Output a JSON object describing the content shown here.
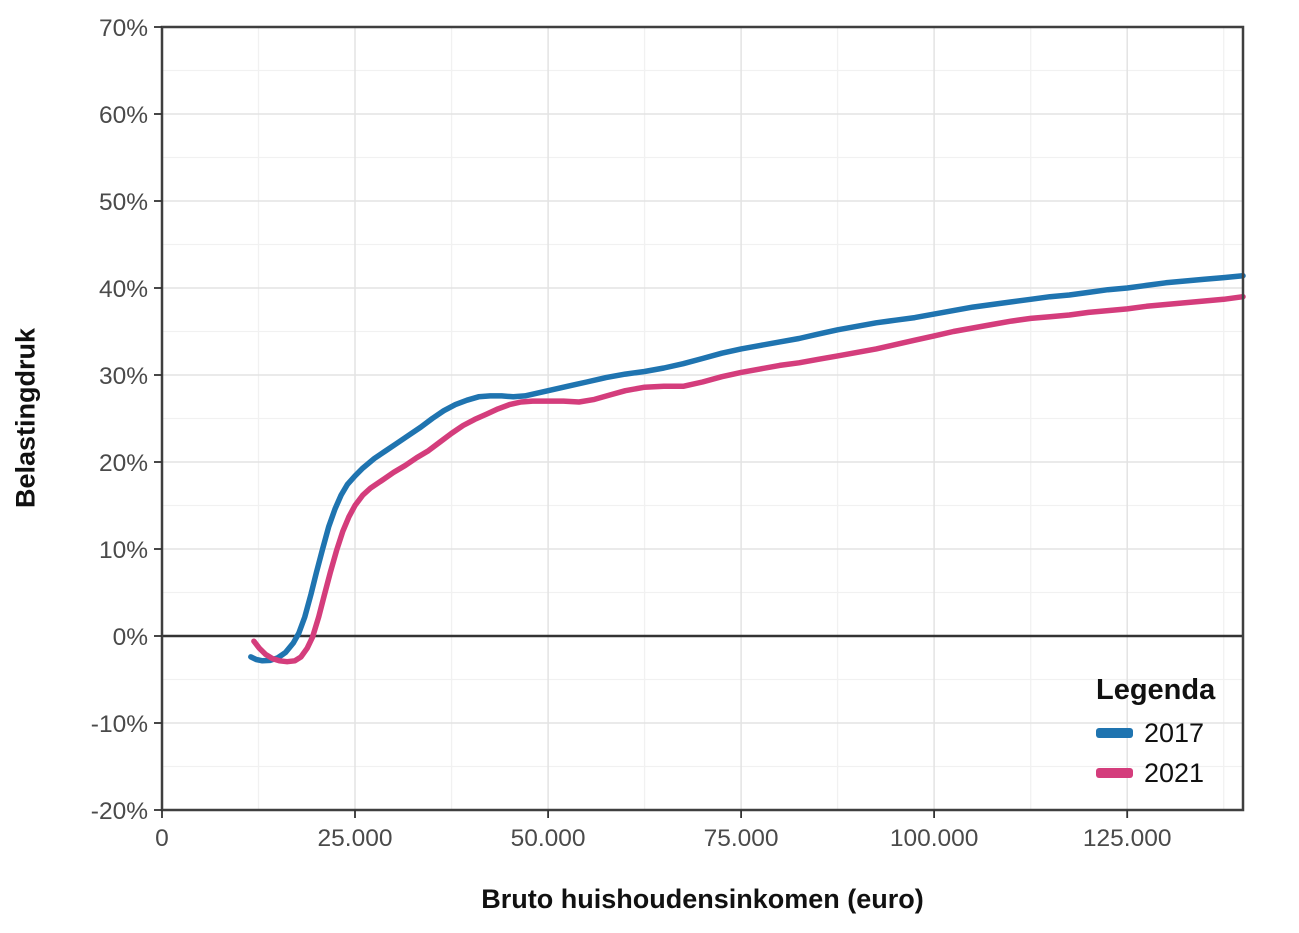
{
  "chart_data": {
    "type": "line",
    "title": "",
    "xlabel": "Bruto huishoudensinkomen (euro)",
    "ylabel": "Belastingdruk",
    "xlim": [
      0,
      140000
    ],
    "ylim": [
      -20,
      70
    ],
    "grid": "on",
    "zero_line": true,
    "x_ticks": [
      {
        "value": 0,
        "label": "0"
      },
      {
        "value": 25000,
        "label": "25.000"
      },
      {
        "value": 50000,
        "label": "50.000"
      },
      {
        "value": 75000,
        "label": "75.000"
      },
      {
        "value": 100000,
        "label": "100.000"
      },
      {
        "value": 125000,
        "label": "125.000"
      }
    ],
    "y_ticks": [
      {
        "value": 70,
        "label": "70%"
      },
      {
        "value": 60,
        "label": "60%"
      },
      {
        "value": 50,
        "label": "50%"
      },
      {
        "value": 40,
        "label": "40%"
      },
      {
        "value": 30,
        "label": "30%"
      },
      {
        "value": 20,
        "label": "20%"
      },
      {
        "value": 10,
        "label": "10%"
      },
      {
        "value": 0,
        "label": "0%"
      },
      {
        "value": -10,
        "label": "-10%"
      },
      {
        "value": -20,
        "label": "-20%"
      }
    ],
    "x_minor": [
      12500,
      37500,
      62500,
      87500,
      112500,
      137500
    ],
    "y_minor": [
      -15,
      -5,
      5,
      15,
      25,
      35,
      45,
      55,
      65
    ],
    "legend": {
      "title": "Legenda",
      "position": "bottom-right-inside"
    },
    "style": {
      "grid_major": "#e3e3e3",
      "grid_minor": "#f1f1f1",
      "panel_border": "#3f3f3f",
      "zero_line_color": "#333333",
      "tick_color": "#333333",
      "tick_label_color": "#4a4a4a"
    },
    "series": [
      {
        "name": "2017",
        "color": "#1f74b0",
        "points": [
          [
            11500,
            -2.4
          ],
          [
            12200,
            -2.7
          ],
          [
            13000,
            -2.85
          ],
          [
            14000,
            -2.8
          ],
          [
            15000,
            -2.5
          ],
          [
            16000,
            -1.9
          ],
          [
            17000,
            -0.8
          ],
          [
            17700,
            0.3
          ],
          [
            18500,
            2.2
          ],
          [
            19300,
            4.8
          ],
          [
            20000,
            7.3
          ],
          [
            20800,
            10.0
          ],
          [
            21600,
            12.6
          ],
          [
            22400,
            14.6
          ],
          [
            23200,
            16.2
          ],
          [
            24000,
            17.4
          ],
          [
            25000,
            18.4
          ],
          [
            26000,
            19.3
          ],
          [
            27500,
            20.4
          ],
          [
            29000,
            21.3
          ],
          [
            30500,
            22.2
          ],
          [
            32000,
            23.1
          ],
          [
            33500,
            24.0
          ],
          [
            35000,
            25.0
          ],
          [
            36500,
            25.9
          ],
          [
            38000,
            26.6
          ],
          [
            39500,
            27.1
          ],
          [
            41000,
            27.5
          ],
          [
            42500,
            27.6
          ],
          [
            44000,
            27.6
          ],
          [
            45500,
            27.5
          ],
          [
            47000,
            27.6
          ],
          [
            48500,
            27.9
          ],
          [
            50000,
            28.2
          ],
          [
            52500,
            28.7
          ],
          [
            55000,
            29.2
          ],
          [
            57500,
            29.7
          ],
          [
            60000,
            30.1
          ],
          [
            62500,
            30.4
          ],
          [
            65000,
            30.8
          ],
          [
            67500,
            31.3
          ],
          [
            70000,
            31.9
          ],
          [
            72500,
            32.5
          ],
          [
            75000,
            33.0
          ],
          [
            77500,
            33.4
          ],
          [
            80000,
            33.8
          ],
          [
            82500,
            34.2
          ],
          [
            85000,
            34.7
          ],
          [
            87500,
            35.2
          ],
          [
            90000,
            35.6
          ],
          [
            92500,
            36.0
          ],
          [
            95000,
            36.3
          ],
          [
            97500,
            36.6
          ],
          [
            100000,
            37.0
          ],
          [
            102500,
            37.4
          ],
          [
            105000,
            37.8
          ],
          [
            107500,
            38.1
          ],
          [
            110000,
            38.4
          ],
          [
            112500,
            38.7
          ],
          [
            115000,
            39.0
          ],
          [
            117500,
            39.2
          ],
          [
            120000,
            39.5
          ],
          [
            122500,
            39.8
          ],
          [
            125000,
            40.0
          ],
          [
            127500,
            40.3
          ],
          [
            130000,
            40.6
          ],
          [
            132500,
            40.8
          ],
          [
            135000,
            41.0
          ],
          [
            137500,
            41.2
          ],
          [
            140000,
            41.4
          ]
        ]
      },
      {
        "name": "2021",
        "color": "#d43d7c",
        "points": [
          [
            11900,
            -0.6
          ],
          [
            12600,
            -1.4
          ],
          [
            13400,
            -2.1
          ],
          [
            14300,
            -2.6
          ],
          [
            15200,
            -2.85
          ],
          [
            16200,
            -2.95
          ],
          [
            17200,
            -2.85
          ],
          [
            18000,
            -2.4
          ],
          [
            18800,
            -1.4
          ],
          [
            19500,
            -0.1
          ],
          [
            20300,
            2.2
          ],
          [
            21000,
            4.6
          ],
          [
            21800,
            7.3
          ],
          [
            22600,
            9.8
          ],
          [
            23400,
            12.0
          ],
          [
            24200,
            13.7
          ],
          [
            25000,
            15.0
          ],
          [
            26000,
            16.2
          ],
          [
            27000,
            17.0
          ],
          [
            28500,
            17.9
          ],
          [
            30000,
            18.8
          ],
          [
            31500,
            19.6
          ],
          [
            33000,
            20.5
          ],
          [
            34500,
            21.3
          ],
          [
            36000,
            22.3
          ],
          [
            37500,
            23.3
          ],
          [
            39000,
            24.2
          ],
          [
            40500,
            24.9
          ],
          [
            42000,
            25.5
          ],
          [
            43500,
            26.1
          ],
          [
            45000,
            26.6
          ],
          [
            46500,
            26.9
          ],
          [
            48000,
            27.0
          ],
          [
            50000,
            27.0
          ],
          [
            52000,
            27.0
          ],
          [
            54000,
            26.9
          ],
          [
            56000,
            27.2
          ],
          [
            58000,
            27.7
          ],
          [
            60000,
            28.2
          ],
          [
            62500,
            28.6
          ],
          [
            65000,
            28.7
          ],
          [
            67500,
            28.7
          ],
          [
            70000,
            29.2
          ],
          [
            72500,
            29.8
          ],
          [
            75000,
            30.3
          ],
          [
            77500,
            30.7
          ],
          [
            80000,
            31.1
          ],
          [
            82500,
            31.4
          ],
          [
            85000,
            31.8
          ],
          [
            87500,
            32.2
          ],
          [
            90000,
            32.6
          ],
          [
            92500,
            33.0
          ],
          [
            95000,
            33.5
          ],
          [
            97500,
            34.0
          ],
          [
            100000,
            34.5
          ],
          [
            102500,
            35.0
          ],
          [
            105000,
            35.4
          ],
          [
            107500,
            35.8
          ],
          [
            110000,
            36.2
          ],
          [
            112500,
            36.5
          ],
          [
            115000,
            36.7
          ],
          [
            117500,
            36.9
          ],
          [
            120000,
            37.2
          ],
          [
            122500,
            37.4
          ],
          [
            125000,
            37.6
          ],
          [
            127500,
            37.9
          ],
          [
            130000,
            38.1
          ],
          [
            132500,
            38.3
          ],
          [
            135000,
            38.5
          ],
          [
            137500,
            38.7
          ],
          [
            140000,
            39.0
          ]
        ]
      }
    ]
  }
}
